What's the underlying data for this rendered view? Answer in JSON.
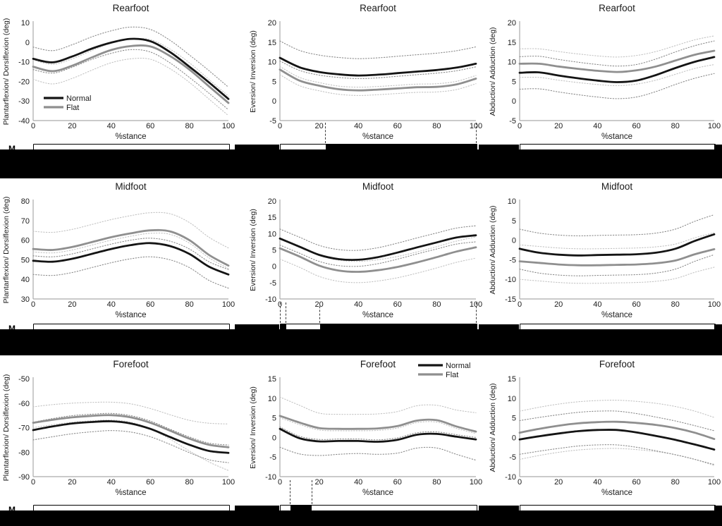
{
  "figure": {
    "xlabel": "%stance",
    "xticks": [
      0,
      20,
      40,
      60,
      80,
      100
    ],
    "legend": {
      "normal_label": "Normal",
      "flat_label": "Flat"
    },
    "clipped_left_label_fragment": "M",
    "colors": {
      "normal": "#141414",
      "flat": "#8f8f8f",
      "normal_ci": "#8a8a8a",
      "flat_ci": "#c2c2c2",
      "axis": "#aaaaaa",
      "text": "#1a1a1a",
      "band": "#000000"
    }
  },
  "chart_data": [
    {
      "id": "rearfoot-sagittal",
      "row": 0,
      "col": 0,
      "type": "line",
      "title": "Rearfoot",
      "ylabel": "Plantarflexion/ Dorsiflexion (deg)",
      "xlabel": "%stance",
      "ylim": [
        -40,
        10
      ],
      "yticks": [
        10,
        0,
        -10,
        -20,
        -30,
        -40
      ],
      "x": [
        0,
        10,
        20,
        30,
        40,
        50,
        60,
        70,
        80,
        90,
        100
      ],
      "series": [
        {
          "name": "Normal",
          "values": [
            -8.5,
            -10.3,
            -7.3,
            -3.3,
            -0.2,
            1.7,
            0.5,
            -5,
            -12.5,
            -20.5,
            -29
          ],
          "ci_upper": 6,
          "ci_lower": 5.5
        },
        {
          "name": "Flat",
          "values": [
            -12.5,
            -14.8,
            -12,
            -7.8,
            -4,
            -2,
            -2.2,
            -7,
            -14,
            -22.5,
            -31
          ],
          "ci_upper": 3.5,
          "ci_lower": 6.5
        }
      ],
      "legend": "bottom-left",
      "sig_intervals": [],
      "sig_marks": []
    },
    {
      "id": "rearfoot-frontal",
      "row": 0,
      "col": 1,
      "type": "line",
      "title": "Rearfoot",
      "ylabel": "Eversion/ Inversion (deg)",
      "xlabel": "%stance",
      "ylim": [
        -5,
        20
      ],
      "yticks": [
        20,
        15,
        10,
        5,
        0,
        -5
      ],
      "x": [
        0,
        10,
        20,
        30,
        40,
        50,
        60,
        70,
        80,
        90,
        100
      ],
      "series": [
        {
          "name": "Normal",
          "values": [
            11,
            8.6,
            7.4,
            6.8,
            6.5,
            6.7,
            7.1,
            7.5,
            7.9,
            8.5,
            9.5
          ],
          "ci_upper": 4.3,
          "ci_lower": 0.8
        },
        {
          "name": "Flat",
          "values": [
            8,
            5.2,
            3.9,
            3,
            2.7,
            2.9,
            3.2,
            3.5,
            3.6,
            4.2,
            5.7
          ],
          "ci_upper": 0.8,
          "ci_lower": 1.3
        }
      ],
      "legend": null,
      "sig_intervals": [
        [
          23,
          100
        ]
      ],
      "sig_marks": [
        23,
        100
      ]
    },
    {
      "id": "rearfoot-transverse",
      "row": 0,
      "col": 2,
      "type": "line",
      "title": "Rearfoot",
      "ylabel": "Abduction/ Adduction (deg)",
      "xlabel": "%stance",
      "ylim": [
        -5,
        20
      ],
      "yticks": [
        20,
        15,
        10,
        5,
        0,
        -5
      ],
      "x": [
        0,
        10,
        20,
        30,
        40,
        50,
        60,
        70,
        80,
        90,
        100
      ],
      "series": [
        {
          "name": "Normal",
          "values": [
            7.2,
            7.3,
            6.5,
            5.8,
            5.2,
            4.8,
            5.2,
            6.6,
            8.4,
            10,
            11.2
          ],
          "ci_upper": 4.1,
          "ci_lower": 4.2
        },
        {
          "name": "Flat",
          "values": [
            9.5,
            9.5,
            8.8,
            8.2,
            7.7,
            7.4,
            7.8,
            8.8,
            10.3,
            11.8,
            12.8
          ],
          "ci_upper": 3.8,
          "ci_lower": 3.5
        }
      ],
      "legend": null,
      "sig_intervals": [],
      "sig_marks": []
    },
    {
      "id": "midfoot-sagittal",
      "row": 1,
      "col": 0,
      "type": "line",
      "title": "Midfoot",
      "ylabel": "Plantarflexion/ Dorsiflexion (deg)",
      "xlabel": "%stance",
      "ylim": [
        30,
        80
      ],
      "yticks": [
        80,
        70,
        60,
        50,
        40,
        30
      ],
      "x": [
        0,
        10,
        20,
        30,
        40,
        50,
        60,
        70,
        80,
        90,
        100
      ],
      "series": [
        {
          "name": "Normal",
          "values": [
            49.5,
            49,
            50.5,
            53,
            55.5,
            57.5,
            58.5,
            57,
            53,
            46.5,
            42.5
          ],
          "ci_upper": 2.5,
          "ci_lower": 7
        },
        {
          "name": "Flat",
          "values": [
            55.5,
            55,
            56.5,
            59,
            61.5,
            63.5,
            65,
            64.5,
            60,
            52.5,
            47
          ],
          "ci_upper": 9,
          "ci_lower": 1.5
        }
      ],
      "legend": null,
      "sig_intervals": [],
      "sig_marks": []
    },
    {
      "id": "midfoot-frontal",
      "row": 1,
      "col": 1,
      "type": "line",
      "title": "Midfoot",
      "ylabel": "Eversion/ Inversion (deg)",
      "xlabel": "%stance",
      "ylim": [
        -10,
        20
      ],
      "yticks": [
        20,
        15,
        10,
        5,
        0,
        -5,
        -10
      ],
      "x": [
        0,
        10,
        20,
        30,
        40,
        50,
        60,
        70,
        80,
        90,
        100
      ],
      "series": [
        {
          "name": "Normal",
          "values": [
            8.5,
            6,
            3.5,
            2.2,
            2,
            2.8,
            4.2,
            5.8,
            7.3,
            8.8,
            9.5
          ],
          "ci_upper": 2.9,
          "ci_lower": 2
        },
        {
          "name": "Flat",
          "values": [
            5.5,
            3,
            0.2,
            -1.3,
            -1.7,
            -1.2,
            -0.2,
            1.2,
            2.8,
            4.5,
            5.8
          ],
          "ci_upper": 3.2,
          "ci_lower": 3.3
        }
      ],
      "legend": null,
      "sig_intervals": [
        [
          0,
          3
        ],
        [
          20,
          100
        ]
      ],
      "sig_marks": [
        0,
        3,
        20,
        100
      ]
    },
    {
      "id": "midfoot-transverse",
      "row": 1,
      "col": 2,
      "type": "line",
      "title": "Midfoot",
      "ylabel": "Abduction/ Adduction (deg)",
      "xlabel": "%stance",
      "ylim": [
        -15,
        10
      ],
      "yticks": [
        10,
        5,
        0,
        -5,
        -10,
        -15
      ],
      "x": [
        0,
        10,
        20,
        30,
        40,
        50,
        60,
        70,
        80,
        90,
        100
      ],
      "series": [
        {
          "name": "Normal",
          "values": [
            -2.2,
            -3.2,
            -3.7,
            -3.9,
            -3.8,
            -3.7,
            -3.6,
            -3.2,
            -2.2,
            -0.2,
            1.5
          ],
          "ci_upper": 5,
          "ci_lower": 5.2
        },
        {
          "name": "Flat",
          "values": [
            -5.4,
            -5.8,
            -6.2,
            -6.4,
            -6.4,
            -6.3,
            -6.2,
            -5.9,
            -5.2,
            -3.6,
            -2.3
          ],
          "ci_upper": 4.2,
          "ci_lower": 4.6
        }
      ],
      "legend": null,
      "sig_intervals": [],
      "sig_marks": []
    },
    {
      "id": "forefoot-sagittal",
      "row": 2,
      "col": 0,
      "type": "line",
      "title": "Forefoot",
      "ylabel": "Plantarflexion/ Dorsiflexion (deg)",
      "xlabel": "%stance",
      "ylim": [
        -90,
        -50
      ],
      "yticks": [
        -50,
        -60,
        -70,
        -80,
        -90
      ],
      "x": [
        0,
        10,
        20,
        30,
        40,
        50,
        60,
        70,
        80,
        90,
        100
      ],
      "series": [
        {
          "name": "Normal",
          "values": [
            -71,
            -69.5,
            -68.3,
            -67.7,
            -67.4,
            -68.3,
            -70.5,
            -73.8,
            -77,
            -79.5,
            -80.3
          ],
          "ci_upper": 3.2,
          "ci_lower": [
            4,
            4.2,
            4.2,
            4,
            3.8,
            3.5,
            3.2,
            3,
            3.2,
            3.6,
            4
          ]
        },
        {
          "name": "Flat",
          "values": [
            -68,
            -66.8,
            -65.8,
            -65.2,
            -64.9,
            -65.8,
            -68,
            -71.2,
            -74.5,
            -77,
            -78
          ],
          "ci_upper": [
            6.5,
            6.2,
            5.8,
            5.5,
            5.3,
            5.5,
            5.8,
            6.5,
            7.5,
            8.8,
            9.5
          ],
          "ci_lower": [
            2,
            2,
            2,
            2,
            2,
            2,
            2.5,
            3.5,
            5,
            7,
            9.5
          ]
        }
      ],
      "legend": null,
      "sig_intervals": [],
      "sig_marks": []
    },
    {
      "id": "forefoot-frontal",
      "row": 2,
      "col": 1,
      "type": "line",
      "title": "Forefoot",
      "ylabel": "Eversion/ Inversion (deg)",
      "xlabel": "%stance",
      "ylim": [
        -10,
        15
      ],
      "yticks": [
        15,
        10,
        5,
        0,
        -5,
        -10
      ],
      "x": [
        0,
        10,
        20,
        30,
        40,
        50,
        60,
        70,
        80,
        90,
        100
      ],
      "series": [
        {
          "name": "Normal",
          "values": [
            2.2,
            -0.2,
            -1,
            -0.9,
            -0.9,
            -1.1,
            -0.6,
            0.7,
            0.9,
            0.2,
            -0.5
          ],
          "ci_upper": 0.5,
          "ci_lower": [
            4.7,
            4,
            3.6,
            3.4,
            3.2,
            3.2,
            3.4,
            3.4,
            3.6,
            4.5,
            5.3
          ]
        },
        {
          "name": "Flat",
          "values": [
            5.5,
            3.8,
            2.4,
            2.2,
            2.2,
            2.3,
            2.9,
            4.3,
            4.4,
            2.8,
            1.5
          ],
          "ci_upper": [
            4.8,
            4.4,
            3.8,
            3.7,
            3.7,
            3.7,
            3.7,
            3.8,
            3.8,
            4.2,
            4.8
          ],
          "ci_lower": 0.5
        }
      ],
      "legend": "top-right",
      "sig_intervals": [
        [
          5,
          16
        ]
      ],
      "sig_marks": [
        5,
        16
      ]
    },
    {
      "id": "forefoot-transverse",
      "row": 2,
      "col": 2,
      "type": "line",
      "title": "Forefoot",
      "ylabel": "Abduction/ Adduction (deg)",
      "xlabel": "%stance",
      "ylim": [
        -10,
        15
      ],
      "yticks": [
        15,
        10,
        5,
        0,
        -5,
        -10
      ],
      "x": [
        0,
        10,
        20,
        30,
        40,
        50,
        60,
        70,
        80,
        90,
        100
      ],
      "series": [
        {
          "name": "Normal",
          "values": [
            -0.5,
            0.3,
            1,
            1.6,
            1.9,
            1.9,
            1.3,
            0.4,
            -0.6,
            -1.8,
            -3.1
          ],
          "ci_upper": 4.8,
          "ci_lower": 3.8
        },
        {
          "name": "Flat",
          "values": [
            1.2,
            2.2,
            3,
            3.6,
            3.9,
            4,
            3.7,
            3.2,
            2.4,
            1.2,
            -0.4
          ],
          "ci_upper": 5.5,
          "ci_lower": 6.8
        }
      ],
      "legend": null,
      "sig_intervals": [],
      "sig_marks": []
    }
  ]
}
